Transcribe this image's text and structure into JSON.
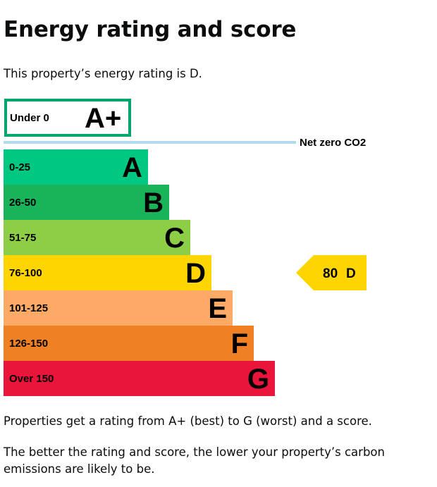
{
  "page": {
    "title": "Energy rating and score",
    "intro": "This property’s energy rating is D.",
    "paragraph_1": "Properties get a rating from A+ (best) to G (worst) and a score.",
    "paragraph_2": "The better the rating and score, the lower your property’s carbon emissions are likely to be."
  },
  "chart_data": {
    "type": "bar",
    "top_band": {
      "range": "Under 0",
      "letter": "A+",
      "color": "#00a56e"
    },
    "net_zero_label": "Net zero CO2",
    "bands": [
      {
        "range": "0-25",
        "letter": "A",
        "color": "#00c781"
      },
      {
        "range": "26-50",
        "letter": "B",
        "color": "#19b459"
      },
      {
        "range": "51-75",
        "letter": "C",
        "color": "#8dce46"
      },
      {
        "range": "76-100",
        "letter": "D",
        "color": "#ffd500"
      },
      {
        "range": "101-125",
        "letter": "E",
        "color": "#fcaa65"
      },
      {
        "range": "126-150",
        "letter": "F",
        "color": "#ef8023"
      },
      {
        "range": "Over 150",
        "letter": "G",
        "color": "#e9153b"
      }
    ],
    "current": {
      "score": "80",
      "letter": "D",
      "color": "#ffd500"
    },
    "net_zero_line_color": "#b1dbea"
  }
}
